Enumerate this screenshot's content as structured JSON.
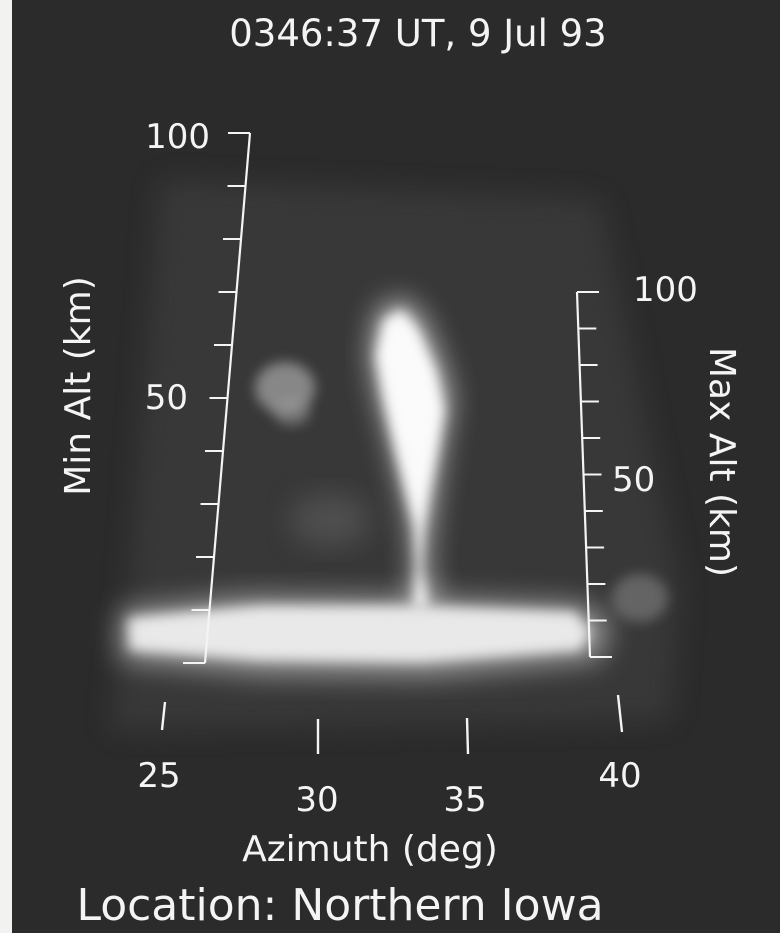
{
  "title": "0346:37 UT, 9 Jul 93",
  "left_axis": {
    "label": "Min Alt (km)",
    "ticks": [
      "100",
      "50"
    ]
  },
  "right_axis": {
    "label": "Max Alt (km)",
    "ticks": [
      "100",
      "50"
    ]
  },
  "bottom_axis": {
    "label": "Azimuth (deg)",
    "ticks": [
      "25",
      "30",
      "35",
      "40"
    ]
  },
  "location": "Location: Northern Iowa",
  "colors": {
    "background": "#2b2b2b",
    "text": "#f4f4f4",
    "glow": "#ffffff"
  }
}
